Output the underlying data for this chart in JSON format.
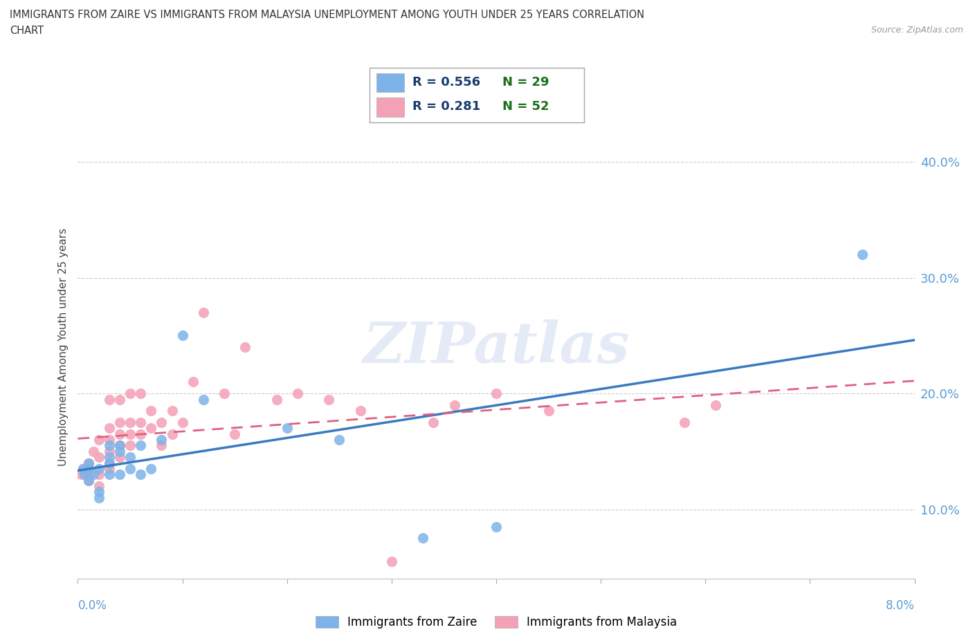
{
  "title_line1": "IMMIGRANTS FROM ZAIRE VS IMMIGRANTS FROM MALAYSIA UNEMPLOYMENT AMONG YOUTH UNDER 25 YEARS CORRELATION",
  "title_line2": "CHART",
  "source": "Source: ZipAtlas.com",
  "ylabel": "Unemployment Among Youth under 25 years",
  "ytick_vals": [
    0.1,
    0.2,
    0.3,
    0.4
  ],
  "xlim": [
    0.0,
    0.08
  ],
  "ylim": [
    0.04,
    0.44
  ],
  "zaire_color": "#7eb3e8",
  "malaysia_color": "#f4a0b5",
  "zaire_line_color": "#3a7abf",
  "malaysia_line_color": "#e06080",
  "watermark": "ZIPatlas",
  "legend_label_zaire": "Immigrants from Zaire",
  "legend_label_malaysia": "Immigrants from Malaysia",
  "zaire_x": [
    0.0005,
    0.0006,
    0.001,
    0.001,
    0.001,
    0.0015,
    0.002,
    0.002,
    0.002,
    0.003,
    0.003,
    0.003,
    0.003,
    0.004,
    0.004,
    0.004,
    0.005,
    0.005,
    0.006,
    0.006,
    0.007,
    0.008,
    0.01,
    0.012,
    0.02,
    0.025,
    0.033,
    0.04,
    0.075
  ],
  "zaire_y": [
    0.135,
    0.13,
    0.125,
    0.135,
    0.14,
    0.13,
    0.11,
    0.115,
    0.135,
    0.13,
    0.14,
    0.145,
    0.155,
    0.13,
    0.15,
    0.155,
    0.135,
    0.145,
    0.13,
    0.155,
    0.135,
    0.16,
    0.25,
    0.195,
    0.17,
    0.16,
    0.075,
    0.085,
    0.32
  ],
  "malaysia_x": [
    0.0003,
    0.0005,
    0.0008,
    0.001,
    0.001,
    0.001,
    0.0015,
    0.002,
    0.002,
    0.002,
    0.002,
    0.003,
    0.003,
    0.003,
    0.003,
    0.003,
    0.003,
    0.004,
    0.004,
    0.004,
    0.004,
    0.004,
    0.005,
    0.005,
    0.005,
    0.005,
    0.006,
    0.006,
    0.006,
    0.007,
    0.007,
    0.008,
    0.008,
    0.009,
    0.009,
    0.01,
    0.011,
    0.012,
    0.014,
    0.015,
    0.016,
    0.019,
    0.021,
    0.024,
    0.027,
    0.03,
    0.034,
    0.036,
    0.04,
    0.045,
    0.058,
    0.061
  ],
  "malaysia_y": [
    0.13,
    0.135,
    0.13,
    0.125,
    0.13,
    0.14,
    0.15,
    0.12,
    0.13,
    0.145,
    0.16,
    0.135,
    0.14,
    0.15,
    0.16,
    0.17,
    0.195,
    0.145,
    0.155,
    0.165,
    0.175,
    0.195,
    0.155,
    0.165,
    0.175,
    0.2,
    0.165,
    0.175,
    0.2,
    0.17,
    0.185,
    0.155,
    0.175,
    0.165,
    0.185,
    0.175,
    0.21,
    0.27,
    0.2,
    0.165,
    0.24,
    0.195,
    0.2,
    0.195,
    0.185,
    0.055,
    0.175,
    0.19,
    0.2,
    0.185,
    0.175,
    0.19
  ]
}
